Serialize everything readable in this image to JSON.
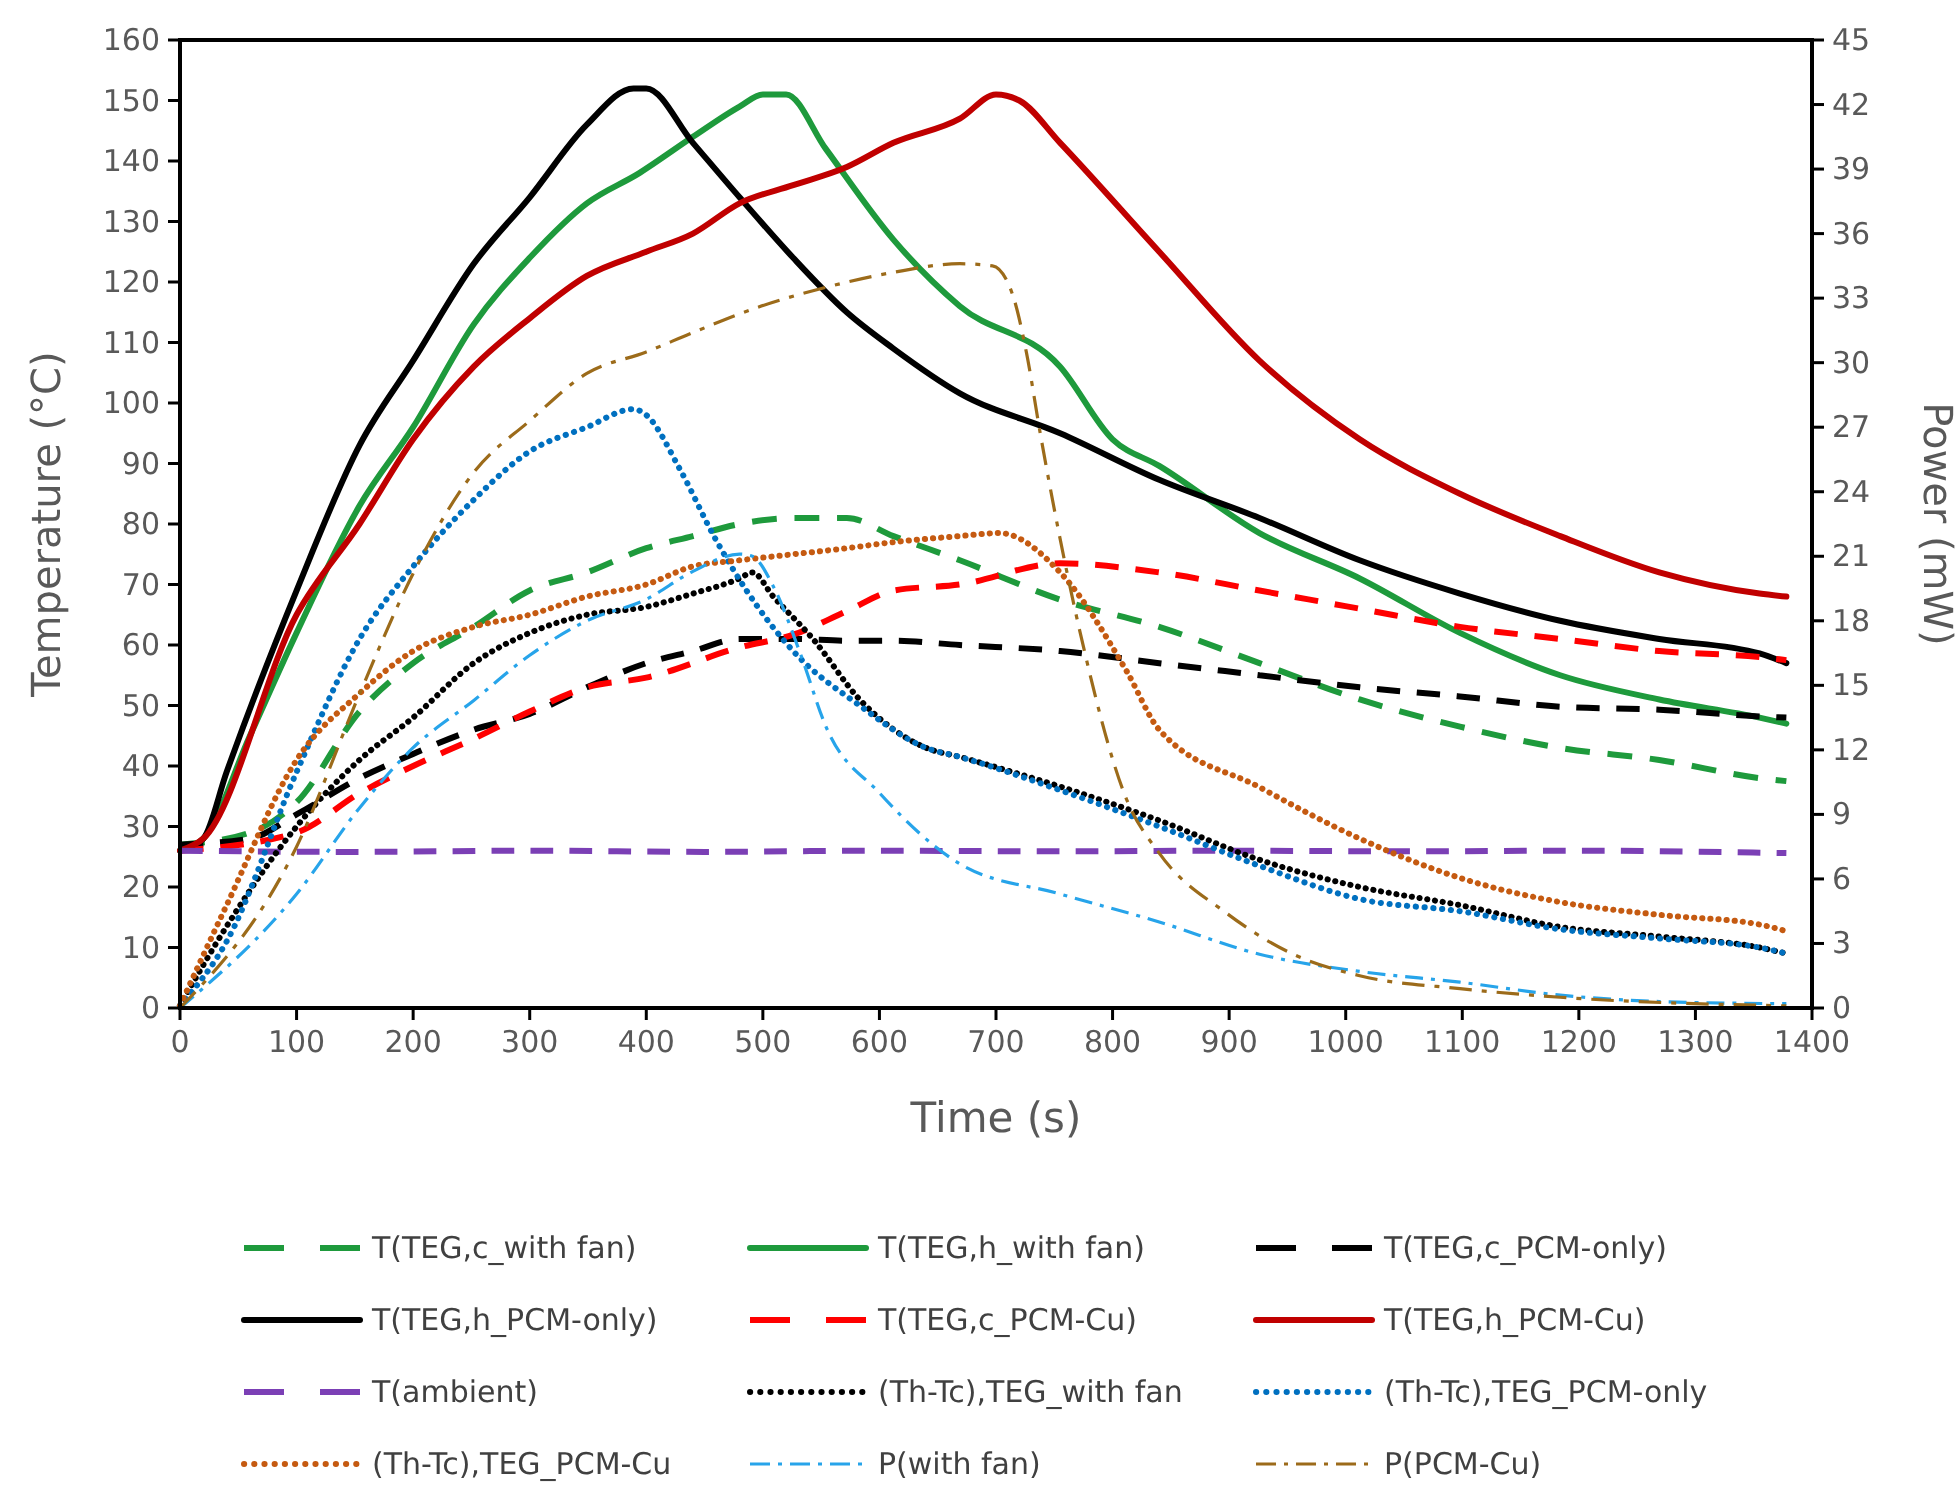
{
  "chart_data": {
    "type": "line",
    "xlabel": "Time (s)",
    "ylabel": "Temperature (°C)",
    "y2label": "Power (mW)",
    "xlim": [
      0,
      1400
    ],
    "xticks": [
      0,
      100,
      200,
      300,
      400,
      500,
      600,
      700,
      800,
      900,
      1000,
      1100,
      1200,
      1300,
      1400
    ],
    "ylim": [
      0,
      160
    ],
    "yticks": [
      0,
      10,
      20,
      30,
      40,
      50,
      60,
      70,
      80,
      90,
      100,
      110,
      120,
      130,
      140,
      150,
      160
    ],
    "y2lim": [
      0,
      45
    ],
    "y2ticks": [
      0,
      3,
      6,
      9,
      12,
      15,
      18,
      21,
      24,
      27,
      30,
      33,
      36,
      39,
      42,
      45
    ],
    "grid": false,
    "legend": "bottom",
    "marker": "none",
    "series": [
      {
        "name": "T(TEG,c_with fan)",
        "color": "#1e9a3c",
        "line_style": "dashed",
        "x": [
          0,
          60,
          100,
          154,
          200,
          252,
          300,
          349,
          400,
          440,
          480,
          526,
          572,
          612,
          669,
          755,
          840,
          926,
          1012,
          1098,
          1184,
          1269,
          1355,
          1378
        ],
        "values": [
          27,
          29,
          34,
          49,
          57,
          63,
          69,
          72,
          76,
          78,
          80,
          81,
          81,
          78,
          74,
          67.5,
          63,
          57,
          51,
          46.5,
          43,
          41,
          38,
          37.5
        ]
      },
      {
        "name": "T(TEG,h_with fan)",
        "color": "#1e9a3c",
        "line_style": "solid",
        "x": [
          0,
          20,
          60,
          100,
          154,
          200,
          252,
          300,
          349,
          394,
          440,
          480,
          500,
          520,
          554,
          612,
          669,
          755,
          800,
          840,
          926,
          1012,
          1098,
          1184,
          1269,
          1355,
          1378
        ],
        "values": [
          26,
          28,
          45,
          62,
          83,
          96,
          113,
          124,
          133,
          138,
          144,
          149,
          151,
          151,
          142,
          127,
          116,
          106,
          94,
          89.6,
          78.5,
          71,
          62,
          55,
          51,
          48,
          47
        ]
      },
      {
        "name": "T(TEG,c_PCM-only)",
        "color": "#000000",
        "line_style": "dashed",
        "x": [
          0,
          60,
          100,
          154,
          200,
          252,
          300,
          349,
          400,
          440,
          480,
          526,
          572,
          612,
          669,
          755,
          840,
          926,
          1012,
          1098,
          1184,
          1269,
          1355,
          1378
        ],
        "values": [
          27,
          28,
          32,
          38,
          42,
          46,
          48.6,
          53,
          57,
          59,
          61,
          61,
          60.7,
          60.7,
          60,
          59,
          57,
          55,
          53,
          51.5,
          49.8,
          49.3,
          48.2,
          48
        ]
      },
      {
        "name": "T(TEG,h_PCM-only)",
        "color": "#000000",
        "line_style": "solid",
        "x": [
          0,
          20,
          40,
          100,
          154,
          200,
          252,
          300,
          349,
          389,
          400,
          440,
          480,
          526,
          572,
          612,
          669,
          755,
          840,
          926,
          1012,
          1098,
          1184,
          1269,
          1355,
          1378
        ],
        "values": [
          26,
          28,
          39,
          69,
          93,
          107,
          123,
          134,
          146,
          152,
          152,
          143,
          134,
          124,
          115,
          109,
          101.6,
          95,
          87.3,
          81,
          74,
          68.5,
          64,
          61,
          58.6,
          57
        ]
      },
      {
        "name": "T(TEG,c_PCM-Cu)",
        "color": "#ff0000",
        "line_style": "dashed",
        "x": [
          0,
          100,
          154,
          200,
          252,
          300,
          349,
          400,
          480,
          526,
          572,
          612,
          669,
          755,
          840,
          926,
          1012,
          1098,
          1184,
          1269,
          1355,
          1378
        ],
        "values": [
          26,
          29,
          35.5,
          40,
          44.5,
          49,
          53,
          54.6,
          59.6,
          61.7,
          65.6,
          69,
          70,
          73.5,
          72,
          69,
          66,
          63,
          61,
          59,
          58,
          57.5
        ]
      },
      {
        "name": "T(TEG,h_PCM-Cu)",
        "color": "#c00000",
        "line_style": "solid",
        "x": [
          0,
          20,
          100,
          154,
          200,
          252,
          300,
          349,
          400,
          440,
          480,
          526,
          572,
          612,
          669,
          700,
          720,
          755,
          840,
          926,
          1012,
          1098,
          1184,
          1269,
          1355,
          1378
        ],
        "values": [
          26,
          28,
          65,
          80,
          94,
          106,
          114,
          121,
          125,
          128,
          133,
          136,
          139,
          143,
          147,
          151,
          150,
          143,
          125,
          107,
          94,
          85,
          78,
          72,
          68.5,
          68
        ]
      },
      {
        "name": "T(ambient)",
        "color": "#7b3fb5",
        "line_style": "dashed",
        "x": [
          0,
          150,
          300,
          450,
          600,
          750,
          900,
          1050,
          1200,
          1378
        ],
        "values": [
          26,
          25.8,
          26,
          25.8,
          26,
          25.9,
          26,
          25.9,
          26,
          25.6
        ]
      },
      {
        "name": "(Th-Tc),TEG_with fan",
        "color": "#000000",
        "line_style": "dotted",
        "x": [
          0,
          40,
          100,
          154,
          200,
          252,
          300,
          349,
          400,
          440,
          480,
          491,
          509,
          543,
          583,
          640,
          669,
          755,
          840,
          926,
          1012,
          1098,
          1184,
          1269,
          1355,
          1378
        ],
        "values": [
          0.4,
          13.5,
          30,
          41,
          48,
          57,
          62,
          65,
          66.3,
          68.5,
          71,
          72,
          68,
          61,
          51,
          43,
          41.5,
          36.6,
          31,
          24.5,
          20,
          17,
          13.4,
          11.8,
          10,
          9
        ]
      },
      {
        "name": "(Th-Tc),TEG_PCM-only",
        "color": "#0070c0",
        "line_style": "dotted",
        "x": [
          0,
          40,
          100,
          154,
          200,
          252,
          300,
          349,
          389,
          400,
          429,
          458,
          486,
          526,
          583,
          640,
          669,
          755,
          840,
          926,
          1012,
          1098,
          1184,
          1269,
          1355,
          1378
        ],
        "values": [
          0.4,
          11,
          39,
          61,
          73,
          84,
          92,
          96,
          99,
          98,
          89,
          78,
          69,
          59,
          50,
          43,
          41.5,
          36,
          30,
          23.5,
          18,
          16,
          13,
          11.5,
          10,
          9
        ]
      },
      {
        "name": "(Th-Tc),TEG_PCM-Cu",
        "color": "#c55a11",
        "line_style": "dotted",
        "x": [
          0,
          40,
          100,
          154,
          200,
          252,
          300,
          349,
          400,
          440,
          480,
          526,
          572,
          612,
          669,
          703,
          755,
          812,
          840,
          926,
          1012,
          1098,
          1184,
          1269,
          1355,
          1378
        ],
        "values": [
          0.4,
          17,
          41,
          52,
          59,
          63,
          65,
          68,
          70,
          73,
          74,
          75,
          76,
          77,
          78,
          78.5,
          72,
          55.7,
          46,
          36.5,
          28,
          21.5,
          17.5,
          15.4,
          13.8,
          12.7
        ]
      },
      {
        "name": "P(with fan)",
        "color": "#27a4ea",
        "line_style": "dashed",
        "axis": "y2",
        "x": [
          0,
          100,
          154,
          200,
          252,
          300,
          349,
          400,
          440,
          480,
          491,
          509,
          532,
          554,
          600,
          669,
          755,
          840,
          926,
          1012,
          1098,
          1184,
          1269,
          1378
        ],
        "values": [
          0,
          5.3,
          9.3,
          12.1,
          14.3,
          16.4,
          18,
          19,
          20.3,
          21.1,
          21,
          19.6,
          16.5,
          13.1,
          10,
          6.7,
          5.3,
          4,
          2.5,
          1.7,
          1.2,
          0.6,
          0.3,
          0.2
        ]
      },
      {
        "name": "P(PCM-Cu)",
        "color": "#9c6b1a",
        "line_style": "dashed",
        "axis": "y2",
        "x": [
          0,
          100,
          154,
          200,
          252,
          300,
          349,
          400,
          440,
          497,
          554,
          612,
          669,
          697,
          714,
          726,
          738,
          772,
          812,
          840,
          898,
          955,
          1012,
          1098,
          1184,
          1378
        ],
        "values": [
          0,
          7.5,
          14.6,
          20.2,
          24.9,
          27.3,
          29.5,
          30.5,
          31.4,
          32.6,
          33.5,
          34.2,
          34.6,
          34.5,
          33.2,
          30.5,
          26.7,
          17.5,
          9.7,
          7.2,
          4.4,
          2.5,
          1.5,
          0.9,
          0.5,
          0.1
        ]
      }
    ]
  }
}
